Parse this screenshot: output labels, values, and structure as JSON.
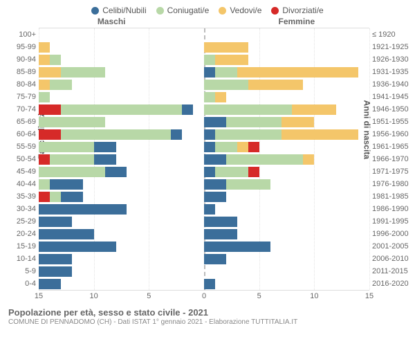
{
  "chart": {
    "type": "population-pyramid",
    "legend": [
      {
        "label": "Celibi/Nubili",
        "color": "#3b6e9a"
      },
      {
        "label": "Coniugati/e",
        "color": "#b8d8a7"
      },
      {
        "label": "Vedovi/e",
        "color": "#f4c66a"
      },
      {
        "label": "Divorziati/e",
        "color": "#d62a28"
      }
    ],
    "headers": {
      "left": "Maschi",
      "right": "Femmine"
    },
    "y_title_left": "Fasce di età",
    "y_title_right": "Anni di nascita",
    "x_axis": {
      "min": -15,
      "max": 15,
      "ticks": [
        15,
        10,
        5,
        0,
        5,
        10,
        15
      ]
    },
    "colors": {
      "celibi": "#3b6e9a",
      "coniugati": "#b8d8a7",
      "vedovi": "#f4c66a",
      "divorziati": "#d62a28",
      "grid": "#e2e2e2",
      "center": "#bbbbbb",
      "bg": "#ffffff"
    },
    "grid_positions": [
      -15,
      -10,
      -5,
      5,
      10,
      15
    ],
    "rows": [
      {
        "age": "100+",
        "birth": "≤ 1920",
        "m": {
          "c": 0,
          "k": 0,
          "v": 0,
          "d": 0
        },
        "f": {
          "c": 0,
          "k": 0,
          "v": 0,
          "d": 0
        }
      },
      {
        "age": "95-99",
        "birth": "1921-1925",
        "m": {
          "c": 0,
          "k": 0,
          "v": 1,
          "d": 0
        },
        "f": {
          "c": 0,
          "k": 0,
          "v": 4,
          "d": 0
        }
      },
      {
        "age": "90-94",
        "birth": "1926-1930",
        "m": {
          "c": 0,
          "k": 1,
          "v": 1,
          "d": 0
        },
        "f": {
          "c": 0,
          "k": 1,
          "v": 3,
          "d": 0
        }
      },
      {
        "age": "85-89",
        "birth": "1931-1935",
        "m": {
          "c": 0,
          "k": 4,
          "v": 2,
          "d": 0
        },
        "f": {
          "c": 1,
          "k": 2,
          "v": 11,
          "d": 0
        }
      },
      {
        "age": "80-84",
        "birth": "1936-1940",
        "m": {
          "c": 0,
          "k": 2,
          "v": 1,
          "d": 0
        },
        "f": {
          "c": 0,
          "k": 4,
          "v": 5,
          "d": 0
        }
      },
      {
        "age": "75-79",
        "birth": "1941-1945",
        "m": {
          "c": 0,
          "k": 1,
          "v": 0,
          "d": 0
        },
        "f": {
          "c": 0,
          "k": 1,
          "v": 1,
          "d": 0
        }
      },
      {
        "age": "70-74",
        "birth": "1946-1950",
        "m": {
          "c": 1,
          "k": 11,
          "v": 0,
          "d": 2
        },
        "f": {
          "c": 0,
          "k": 8,
          "v": 4,
          "d": 0
        }
      },
      {
        "age": "65-69",
        "birth": "1951-1955",
        "m": {
          "c": 0,
          "k": 6,
          "v": 0,
          "d": 0
        },
        "f": {
          "c": 2,
          "k": 5,
          "v": 3,
          "d": 0
        }
      },
      {
        "age": "60-64",
        "birth": "1956-1960",
        "m": {
          "c": 1,
          "k": 10,
          "v": 0,
          "d": 2
        },
        "f": {
          "c": 1,
          "k": 6,
          "v": 7,
          "d": 0
        }
      },
      {
        "age": "55-59",
        "birth": "1961-1965",
        "m": {
          "c": 2,
          "k": 5,
          "v": 0,
          "d": 0
        },
        "f": {
          "c": 1,
          "k": 2,
          "v": 1,
          "d": 1
        }
      },
      {
        "age": "50-54",
        "birth": "1966-1970",
        "m": {
          "c": 2,
          "k": 4,
          "v": 0,
          "d": 1
        },
        "f": {
          "c": 2,
          "k": 7,
          "v": 1,
          "d": 0
        }
      },
      {
        "age": "45-49",
        "birth": "1971-1975",
        "m": {
          "c": 2,
          "k": 6,
          "v": 0,
          "d": 0
        },
        "f": {
          "c": 1,
          "k": 3,
          "v": 0,
          "d": 1
        }
      },
      {
        "age": "40-44",
        "birth": "1976-1980",
        "m": {
          "c": 3,
          "k": 1,
          "v": 0,
          "d": 0
        },
        "f": {
          "c": 2,
          "k": 4,
          "v": 0,
          "d": 0
        }
      },
      {
        "age": "35-39",
        "birth": "1981-1985",
        "m": {
          "c": 2,
          "k": 1,
          "v": 0,
          "d": 1
        },
        "f": {
          "c": 2,
          "k": 0,
          "v": 0,
          "d": 0
        }
      },
      {
        "age": "30-34",
        "birth": "1986-1990",
        "m": {
          "c": 8,
          "k": 0,
          "v": 0,
          "d": 0
        },
        "f": {
          "c": 1,
          "k": 0,
          "v": 0,
          "d": 0
        }
      },
      {
        "age": "25-29",
        "birth": "1991-1995",
        "m": {
          "c": 3,
          "k": 0,
          "v": 0,
          "d": 0
        },
        "f": {
          "c": 3,
          "k": 0,
          "v": 0,
          "d": 0
        }
      },
      {
        "age": "20-24",
        "birth": "1996-2000",
        "m": {
          "c": 5,
          "k": 0,
          "v": 0,
          "d": 0
        },
        "f": {
          "c": 3,
          "k": 0,
          "v": 0,
          "d": 0
        }
      },
      {
        "age": "15-19",
        "birth": "2001-2005",
        "m": {
          "c": 7,
          "k": 0,
          "v": 0,
          "d": 0
        },
        "f": {
          "c": 6,
          "k": 0,
          "v": 0,
          "d": 0
        }
      },
      {
        "age": "10-14",
        "birth": "2006-2010",
        "m": {
          "c": 3,
          "k": 0,
          "v": 0,
          "d": 0
        },
        "f": {
          "c": 2,
          "k": 0,
          "v": 0,
          "d": 0
        }
      },
      {
        "age": "5-9",
        "birth": "2011-2015",
        "m": {
          "c": 3,
          "k": 0,
          "v": 0,
          "d": 0
        },
        "f": {
          "c": 0,
          "k": 0,
          "v": 0,
          "d": 0
        }
      },
      {
        "age": "0-4",
        "birth": "2016-2020",
        "m": {
          "c": 2,
          "k": 0,
          "v": 0,
          "d": 0
        },
        "f": {
          "c": 1,
          "k": 0,
          "v": 0,
          "d": 0
        }
      }
    ],
    "footer": {
      "title": "Popolazione per età, sesso e stato civile - 2021",
      "sub": "COMUNE DI PENNADOMO (CH) - Dati ISTAT 1° gennaio 2021 - Elaborazione TUTTITALIA.IT"
    }
  }
}
